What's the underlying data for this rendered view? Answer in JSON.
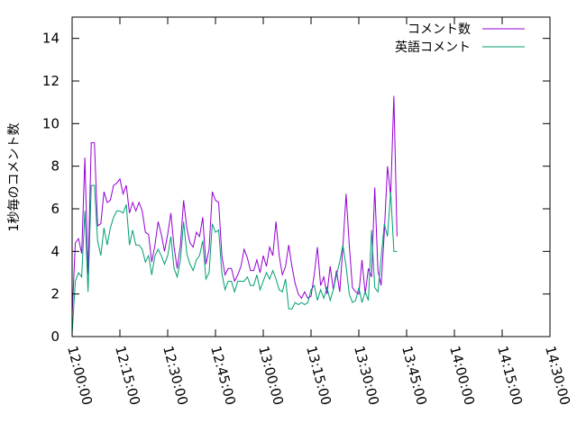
{
  "chart_data": {
    "type": "line",
    "title": "",
    "xlabel": "",
    "ylabel": "1秒毎のコメント数",
    "x_unit": "time",
    "xlim": [
      "12:00:00",
      "14:30:00"
    ],
    "ylim": [
      0,
      15
    ],
    "x_ticks": [
      "12:00:00",
      "12:15:00",
      "12:30:00",
      "12:45:00",
      "13:00:00",
      "13:15:00",
      "13:30:00",
      "13:45:00",
      "14:00:00",
      "14:15:00",
      "14:30:00"
    ],
    "y_ticks": [
      "0",
      "2",
      "4",
      "6",
      "8",
      "10",
      "12",
      "14"
    ],
    "grid": false,
    "legend_position": "top-right",
    "series": [
      {
        "name": "コメント数",
        "color": "#9400d3",
        "points": [
          [
            "12:00:00",
            1.0
          ],
          [
            "12:01:00",
            4.4
          ],
          [
            "12:02:00",
            4.6
          ],
          [
            "12:03:00",
            3.9
          ],
          [
            "12:04:00",
            8.4
          ],
          [
            "12:05:00",
            2.9
          ],
          [
            "12:06:00",
            9.1
          ],
          [
            "12:07:00",
            9.1
          ],
          [
            "12:08:00",
            5.2
          ],
          [
            "12:09:00",
            5.3
          ],
          [
            "12:10:00",
            6.8
          ],
          [
            "12:11:00",
            6.3
          ],
          [
            "12:12:00",
            6.4
          ],
          [
            "12:13:00",
            7.1
          ],
          [
            "12:14:00",
            7.2
          ],
          [
            "12:15:00",
            7.4
          ],
          [
            "12:16:00",
            6.7
          ],
          [
            "12:17:00",
            7.1
          ],
          [
            "12:18:00",
            5.8
          ],
          [
            "12:19:00",
            6.3
          ],
          [
            "12:20:00",
            5.9
          ],
          [
            "12:21:00",
            6.3
          ],
          [
            "12:22:00",
            5.9
          ],
          [
            "12:23:00",
            4.9
          ],
          [
            "12:24:00",
            4.8
          ],
          [
            "12:25:00",
            3.5
          ],
          [
            "12:26:00",
            4.3
          ],
          [
            "12:27:00",
            5.4
          ],
          [
            "12:28:00",
            4.8
          ],
          [
            "12:29:00",
            4.0
          ],
          [
            "12:30:00",
            4.8
          ],
          [
            "12:31:00",
            5.8
          ],
          [
            "12:32:00",
            4.2
          ],
          [
            "12:33:00",
            3.2
          ],
          [
            "12:34:00",
            4.3
          ],
          [
            "12:35:00",
            6.4
          ],
          [
            "12:36:00",
            5.1
          ],
          [
            "12:37:00",
            4.4
          ],
          [
            "12:38:00",
            4.2
          ],
          [
            "12:39:00",
            4.9
          ],
          [
            "12:40:00",
            4.7
          ],
          [
            "12:41:00",
            5.6
          ],
          [
            "12:42:00",
            3.4
          ],
          [
            "12:43:00",
            4.1
          ],
          [
            "12:44:00",
            6.8
          ],
          [
            "12:45:00",
            6.4
          ],
          [
            "12:46:00",
            6.3
          ],
          [
            "12:47:00",
            3.8
          ],
          [
            "12:48:00",
            2.9
          ],
          [
            "12:49:00",
            3.2
          ],
          [
            "12:50:00",
            3.2
          ],
          [
            "12:51:00",
            2.6
          ],
          [
            "12:52:00",
            2.9
          ],
          [
            "12:53:00",
            3.3
          ],
          [
            "12:54:00",
            4.1
          ],
          [
            "12:55:00",
            3.7
          ],
          [
            "12:56:00",
            3.1
          ],
          [
            "12:57:00",
            3.1
          ],
          [
            "12:58:00",
            3.6
          ],
          [
            "12:59:00",
            3.0
          ],
          [
            "13:00:00",
            3.8
          ],
          [
            "13:01:00",
            3.3
          ],
          [
            "13:02:00",
            4.2
          ],
          [
            "13:03:00",
            3.8
          ],
          [
            "13:04:00",
            5.4
          ],
          [
            "13:05:00",
            3.8
          ],
          [
            "13:06:00",
            2.9
          ],
          [
            "13:07:00",
            3.3
          ],
          [
            "13:08:00",
            4.3
          ],
          [
            "13:09:00",
            3.3
          ],
          [
            "13:10:00",
            2.5
          ],
          [
            "13:11:00",
            2.0
          ],
          [
            "13:12:00",
            1.8
          ],
          [
            "13:13:00",
            2.1
          ],
          [
            "13:14:00",
            1.8
          ],
          [
            "13:15:00",
            1.9
          ],
          [
            "13:16:00",
            2.9
          ],
          [
            "13:17:00",
            4.2
          ],
          [
            "13:18:00",
            2.4
          ],
          [
            "13:19:00",
            2.8
          ],
          [
            "13:20:00",
            2.0
          ],
          [
            "13:21:00",
            3.3
          ],
          [
            "13:22:00",
            2.2
          ],
          [
            "13:23:00",
            3.1
          ],
          [
            "13:24:00",
            2.1
          ],
          [
            "13:25:00",
            4.2
          ],
          [
            "13:26:00",
            6.7
          ],
          [
            "13:27:00",
            4.3
          ],
          [
            "13:28:00",
            2.3
          ],
          [
            "13:29:00",
            2.1
          ],
          [
            "13:30:00",
            2.0
          ],
          [
            "13:31:00",
            3.6
          ],
          [
            "13:32:00",
            2.0
          ],
          [
            "13:33:00",
            3.2
          ],
          [
            "13:34:00",
            2.8
          ],
          [
            "13:35:00",
            7.0
          ],
          [
            "13:36:00",
            3.1
          ],
          [
            "13:37:00",
            2.4
          ],
          [
            "13:38:00",
            4.9
          ],
          [
            "13:39:00",
            8.0
          ],
          [
            "13:40:00",
            6.6
          ],
          [
            "13:41:00",
            11.3
          ],
          [
            "13:42:00",
            4.7
          ]
        ]
      },
      {
        "name": "英語コメント",
        "color": "#009e73",
        "points": [
          [
            "12:00:00",
            0.1
          ],
          [
            "12:01:00",
            2.6
          ],
          [
            "12:02:00",
            3.0
          ],
          [
            "12:03:00",
            2.8
          ],
          [
            "12:04:00",
            5.9
          ],
          [
            "12:05:00",
            2.1
          ],
          [
            "12:06:00",
            7.1
          ],
          [
            "12:07:00",
            7.1
          ],
          [
            "12:08:00",
            4.5
          ],
          [
            "12:09:00",
            3.8
          ],
          [
            "12:10:00",
            5.1
          ],
          [
            "12:11:00",
            4.3
          ],
          [
            "12:12:00",
            5.1
          ],
          [
            "12:13:00",
            5.6
          ],
          [
            "12:14:00",
            5.9
          ],
          [
            "12:15:00",
            5.9
          ],
          [
            "12:16:00",
            5.8
          ],
          [
            "12:17:00",
            6.2
          ],
          [
            "12:18:00",
            4.3
          ],
          [
            "12:19:00",
            5.0
          ],
          [
            "12:20:00",
            4.3
          ],
          [
            "12:21:00",
            4.3
          ],
          [
            "12:22:00",
            4.1
          ],
          [
            "12:23:00",
            3.5
          ],
          [
            "12:24:00",
            3.8
          ],
          [
            "12:25:00",
            2.9
          ],
          [
            "12:26:00",
            3.8
          ],
          [
            "12:27:00",
            4.1
          ],
          [
            "12:28:00",
            3.8
          ],
          [
            "12:29:00",
            3.4
          ],
          [
            "12:30:00",
            3.8
          ],
          [
            "12:31:00",
            4.7
          ],
          [
            "12:32:00",
            3.2
          ],
          [
            "12:33:00",
            2.8
          ],
          [
            "12:34:00",
            3.6
          ],
          [
            "12:35:00",
            5.4
          ],
          [
            "12:36:00",
            3.9
          ],
          [
            "12:37:00",
            3.4
          ],
          [
            "12:38:00",
            3.1
          ],
          [
            "12:39:00",
            3.6
          ],
          [
            "12:40:00",
            3.8
          ],
          [
            "12:41:00",
            4.5
          ],
          [
            "12:42:00",
            2.7
          ],
          [
            "12:43:00",
            3.0
          ],
          [
            "12:44:00",
            5.3
          ],
          [
            "12:45:00",
            4.9
          ],
          [
            "12:46:00",
            5.0
          ],
          [
            "12:47:00",
            3.0
          ],
          [
            "12:48:00",
            2.2
          ],
          [
            "12:49:00",
            2.6
          ],
          [
            "12:50:00",
            2.6
          ],
          [
            "12:51:00",
            2.1
          ],
          [
            "12:52:00",
            2.6
          ],
          [
            "12:53:00",
            2.6
          ],
          [
            "12:54:00",
            2.6
          ],
          [
            "12:55:00",
            2.8
          ],
          [
            "12:56:00",
            2.4
          ],
          [
            "12:57:00",
            2.4
          ],
          [
            "12:58:00",
            2.9
          ],
          [
            "12:59:00",
            2.2
          ],
          [
            "13:00:00",
            2.6
          ],
          [
            "13:01:00",
            3.0
          ],
          [
            "13:02:00",
            2.7
          ],
          [
            "13:03:00",
            3.1
          ],
          [
            "13:04:00",
            2.7
          ],
          [
            "13:05:00",
            2.2
          ],
          [
            "13:06:00",
            2.1
          ],
          [
            "13:07:00",
            2.7
          ],
          [
            "13:08:00",
            1.3
          ],
          [
            "13:09:00",
            1.3
          ],
          [
            "13:10:00",
            1.6
          ],
          [
            "13:11:00",
            1.5
          ],
          [
            "13:12:00",
            1.6
          ],
          [
            "13:13:00",
            1.5
          ],
          [
            "13:14:00",
            1.6
          ],
          [
            "13:15:00",
            2.2
          ],
          [
            "13:16:00",
            2.4
          ],
          [
            "13:17:00",
            1.7
          ],
          [
            "13:18:00",
            2.2
          ],
          [
            "13:19:00",
            1.8
          ],
          [
            "13:20:00",
            2.3
          ],
          [
            "13:21:00",
            1.7
          ],
          [
            "13:22:00",
            2.2
          ],
          [
            "13:23:00",
            2.9
          ],
          [
            "13:24:00",
            3.5
          ],
          [
            "13:25:00",
            4.3
          ],
          [
            "13:26:00",
            3.3
          ],
          [
            "13:27:00",
            2.0
          ],
          [
            "13:28:00",
            1.6
          ],
          [
            "13:29:00",
            1.7
          ],
          [
            "13:30:00",
            2.3
          ],
          [
            "13:31:00",
            1.6
          ],
          [
            "13:32:00",
            2.1
          ],
          [
            "13:33:00",
            1.7
          ],
          [
            "13:34:00",
            5.0
          ],
          [
            "13:35:00",
            2.3
          ],
          [
            "13:36:00",
            2.1
          ],
          [
            "13:37:00",
            3.7
          ],
          [
            "13:38:00",
            5.3
          ],
          [
            "13:39:00",
            4.7
          ],
          [
            "13:40:00",
            6.8
          ],
          [
            "13:41:00",
            4.0
          ],
          [
            "13:42:00",
            4.0
          ]
        ]
      }
    ]
  }
}
